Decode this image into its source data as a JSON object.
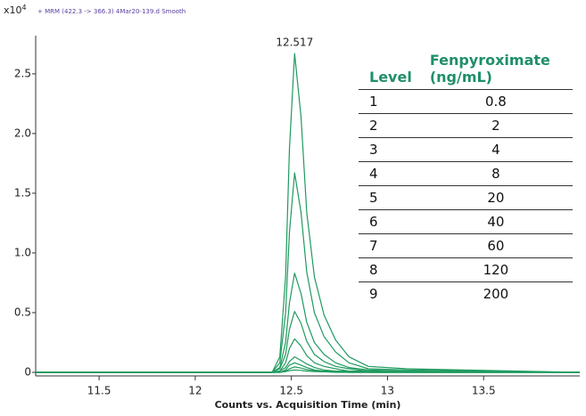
{
  "chart_data": {
    "type": "line",
    "scale_label": "x10",
    "scale_exponent": "4",
    "subtitle": "+ MRM (422.3 -> 366.3) 4Mar20-139.d  Smooth",
    "x_label": "Counts vs. Acquisition Time (min)",
    "annotations": [
      {
        "text": "12.517",
        "x": 12.517
      }
    ],
    "x": [
      11.17,
      11.9,
      12.4,
      12.44,
      12.47,
      12.49,
      12.517,
      12.55,
      12.58,
      12.62,
      12.67,
      12.73,
      12.8,
      12.9,
      13.1,
      14.0
    ],
    "series": [
      {
        "color": "#1f9a5e",
        "values": [
          0,
          0,
          0,
          0.13,
          0.8,
          1.87,
          2.67,
          2.14,
          1.34,
          0.8,
          0.48,
          0.27,
          0.13,
          0.05,
          0.03,
          0
        ]
      },
      {
        "color": "#1f9a5e",
        "values": [
          0,
          0,
          0,
          0.08,
          0.5,
          1.17,
          1.67,
          1.34,
          0.84,
          0.5,
          0.3,
          0.17,
          0.08,
          0.03,
          0.02,
          0
        ]
      },
      {
        "color": "#1f9a5e",
        "values": [
          0,
          0,
          0,
          0.04,
          0.25,
          0.58,
          0.83,
          0.66,
          0.42,
          0.25,
          0.15,
          0.08,
          0.04,
          0.02,
          0.01,
          0
        ]
      },
      {
        "color": "#1f9a5e",
        "values": [
          0,
          0,
          0,
          0.03,
          0.15,
          0.36,
          0.51,
          0.41,
          0.26,
          0.15,
          0.09,
          0.05,
          0.03,
          0.01,
          0.01,
          0
        ]
      },
      {
        "color": "#1f9a5e",
        "values": [
          0,
          0,
          0,
          0.01,
          0.08,
          0.2,
          0.28,
          0.22,
          0.14,
          0.08,
          0.05,
          0.03,
          0.01,
          0.01,
          0,
          0
        ]
      },
      {
        "color": "#1f9a5e",
        "values": [
          0,
          0,
          0,
          0.01,
          0.04,
          0.09,
          0.13,
          0.1,
          0.07,
          0.04,
          0.02,
          0.01,
          0.01,
          0,
          0,
          0
        ]
      },
      {
        "color": "#1f9a5e",
        "values": [
          0,
          0,
          0,
          0,
          0.02,
          0.06,
          0.08,
          0.06,
          0.04,
          0.02,
          0.01,
          0.01,
          0,
          0,
          0,
          0
        ]
      },
      {
        "color": "#1f9a5e",
        "values": [
          0,
          0,
          0,
          0,
          0.01,
          0.03,
          0.045,
          0.036,
          0.023,
          0.014,
          0.008,
          0.005,
          0,
          0,
          0,
          0
        ]
      },
      {
        "color": "#1f9a5e",
        "values": [
          0,
          0,
          0,
          0,
          0.006,
          0.014,
          0.02,
          0.016,
          0.01,
          0.006,
          0.004,
          0,
          0,
          0,
          0,
          0
        ]
      }
    ],
    "xlim": [
      11.17,
      14.0
    ],
    "xticks": [
      11.5,
      12,
      12.5,
      13,
      13.5
    ],
    "ylim": [
      -0.03,
      2.82
    ],
    "yticks": [
      0,
      0.5,
      {
        "value": 1,
        "label": "1.0"
      },
      1.5,
      {
        "value": 2,
        "label": "2.0"
      },
      2.5
    ],
    "table": {
      "columns": [
        "Level",
        "Fenpyroximate (ng/mL)"
      ],
      "rows": [
        [
          1,
          0.8
        ],
        [
          2,
          2
        ],
        [
          3,
          4
        ],
        [
          4,
          8
        ],
        [
          5,
          20
        ],
        [
          6,
          40
        ],
        [
          7,
          60
        ],
        [
          8,
          120
        ],
        [
          9,
          200
        ]
      ]
    }
  }
}
